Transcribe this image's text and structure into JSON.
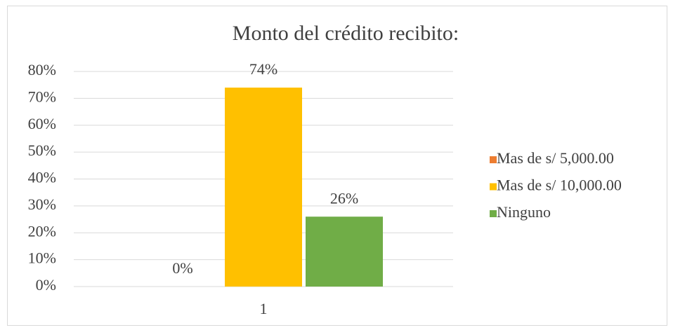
{
  "chart_data": {
    "type": "bar",
    "title": "Monto del crédito recibito:",
    "categories": [
      "1"
    ],
    "series": [
      {
        "name": "Mas de s/ 5,000.00",
        "color": "#ed7d31",
        "values": [
          0
        ],
        "value_labels": [
          "0%"
        ]
      },
      {
        "name": "Mas de s/ 10,000.00",
        "color": "#ffc000",
        "values": [
          74
        ],
        "value_labels": [
          "74%"
        ]
      },
      {
        "name": "Ninguno",
        "color": "#70ad47",
        "values": [
          26
        ],
        "value_labels": [
          "26%"
        ]
      }
    ],
    "ylim": [
      0,
      80
    ],
    "yticks": [
      {
        "value": 0,
        "label": "0%"
      },
      {
        "value": 10,
        "label": "10%"
      },
      {
        "value": 20,
        "label": "20%"
      },
      {
        "value": 30,
        "label": "30%"
      },
      {
        "value": 40,
        "label": "40%"
      },
      {
        "value": 50,
        "label": "50%"
      },
      {
        "value": 60,
        "label": "60%"
      },
      {
        "value": 70,
        "label": "70%"
      },
      {
        "value": 80,
        "label": "80%"
      }
    ],
    "grid": true,
    "legend": "right"
  }
}
